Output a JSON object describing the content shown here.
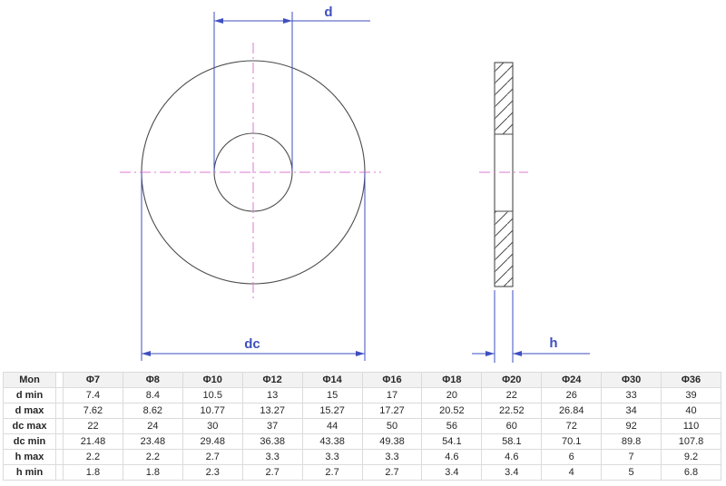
{
  "colors": {
    "dimension_blue": "#3E4FC1",
    "centerline_pink": "#DE7AD4",
    "outline_gray": "#4A4A4A",
    "table_border": "#DBDBDB",
    "table_header_bg": "#F2F2F2",
    "text_dark": "#262626"
  },
  "drawing": {
    "labels": {
      "d": "d",
      "dc": "dc",
      "h": "h"
    }
  },
  "table": {
    "corner_header": "Mon",
    "columns": [
      "Φ7",
      "Φ8",
      "Φ10",
      "Φ12",
      "Φ14",
      "Φ16",
      "Φ18",
      "Φ20",
      "Φ24",
      "Φ30",
      "Φ36"
    ],
    "rows": [
      {
        "label": "d min",
        "values": [
          7.4,
          8.4,
          10.5,
          13,
          15,
          17,
          20,
          22,
          26,
          33,
          39
        ]
      },
      {
        "label": "d max",
        "values": [
          7.62,
          8.62,
          10.77,
          13.27,
          15.27,
          17.27,
          20.52,
          22.52,
          26.84,
          34,
          40
        ]
      },
      {
        "label": "dc max",
        "values": [
          22,
          24,
          30,
          37,
          44,
          50,
          56,
          60,
          72,
          92,
          110
        ]
      },
      {
        "label": "dc min",
        "values": [
          21.48,
          23.48,
          29.48,
          36.38,
          43.38,
          49.38,
          54.1,
          58.1,
          70.1,
          89.8,
          107.8
        ]
      },
      {
        "label": "h max",
        "values": [
          2.2,
          2.2,
          2.7,
          3.3,
          3.3,
          3.3,
          4.6,
          4.6,
          6,
          7,
          9.2
        ]
      },
      {
        "label": "h min",
        "values": [
          1.8,
          1.8,
          2.3,
          2.7,
          2.7,
          2.7,
          3.4,
          3.4,
          4,
          5,
          6.8
        ]
      }
    ]
  }
}
